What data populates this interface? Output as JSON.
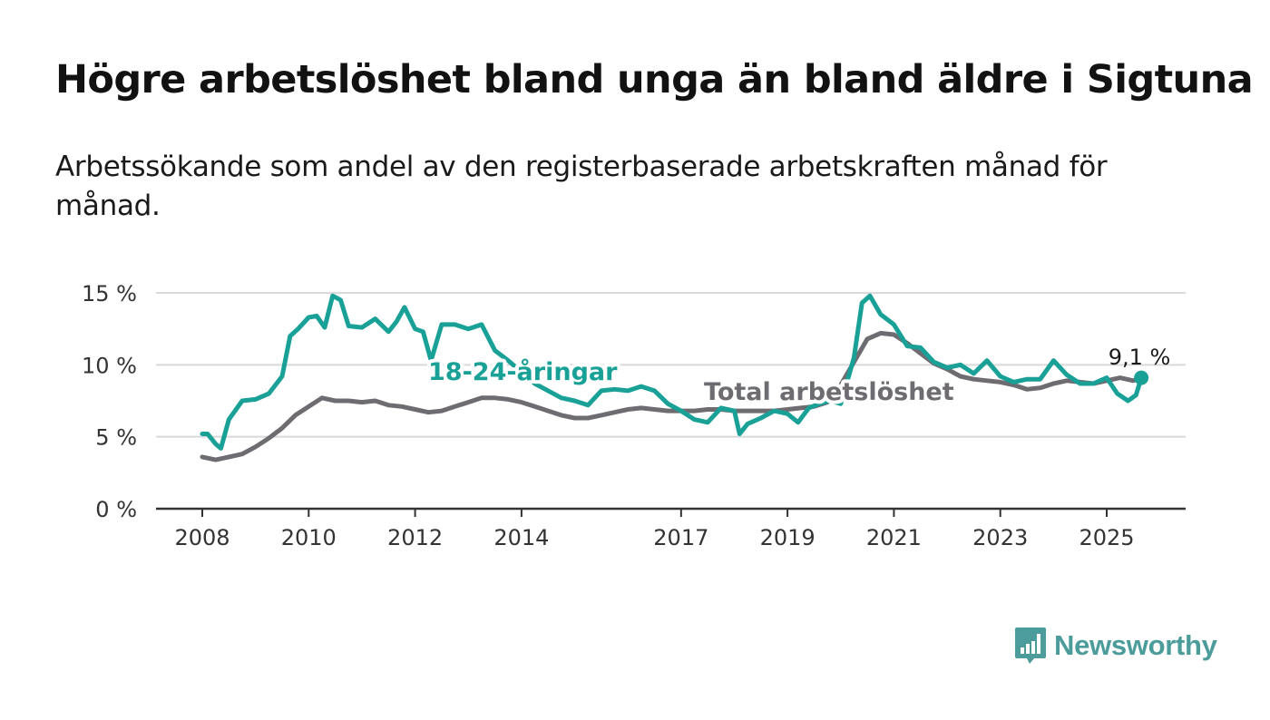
{
  "title": "Högre arbetslöshet bland unga än bland äldre i Sigtuna",
  "subtitle": "Arbetssökande som andel av den registerbaserade arbetskraften månad för månad.",
  "colors": {
    "youth": "#1aa197",
    "total": "#6e6c71",
    "grid": "#d9d9d9",
    "axis": "#333333",
    "brand": "#4b9c9b"
  },
  "logo": {
    "icon": "newsworthy-logo-icon",
    "text": "Newsworthy"
  },
  "chart_data": {
    "type": "line",
    "xlim": [
      2008,
      2026.5
    ],
    "ylim": [
      0,
      15
    ],
    "x_ticks": [
      2008,
      2010,
      2012,
      2014,
      2017,
      2019,
      2021,
      2023,
      2025
    ],
    "x_tick_labels": [
      "2008",
      "2010",
      "2012",
      "2014",
      "2017",
      "2019",
      "2021",
      "2023",
      "2025"
    ],
    "y_ticks": [
      0,
      5,
      10,
      15
    ],
    "y_tick_labels": [
      "0 %",
      "5 %",
      "10 %",
      "15 %"
    ],
    "grid": true,
    "end_label": "9,1 %",
    "series": [
      {
        "name": "Total arbetslöshet",
        "x": [
          2008.0,
          2008.25,
          2008.5,
          2008.75,
          2009.0,
          2009.25,
          2009.5,
          2009.75,
          2010.0,
          2010.25,
          2010.5,
          2010.75,
          2011.0,
          2011.25,
          2011.5,
          2011.75,
          2012.0,
          2012.25,
          2012.5,
          2012.75,
          2013.0,
          2013.25,
          2013.5,
          2013.75,
          2014.0,
          2014.25,
          2014.5,
          2014.75,
          2015.0,
          2015.25,
          2015.5,
          2015.75,
          2016.0,
          2016.25,
          2016.5,
          2016.75,
          2017.0,
          2017.25,
          2017.5,
          2017.75,
          2018.0,
          2018.25,
          2018.5,
          2018.75,
          2019.0,
          2019.25,
          2019.5,
          2019.75,
          2020.0,
          2020.25,
          2020.5,
          2020.75,
          2021.0,
          2021.25,
          2021.5,
          2021.75,
          2022.0,
          2022.25,
          2022.5,
          2022.75,
          2023.0,
          2023.25,
          2023.5,
          2023.75,
          2024.0,
          2024.25,
          2024.5,
          2024.75,
          2025.0,
          2025.25,
          2025.5,
          2025.65
        ],
        "y": [
          3.6,
          3.4,
          3.6,
          3.8,
          4.3,
          4.9,
          5.6,
          6.5,
          7.1,
          7.7,
          7.5,
          7.5,
          7.4,
          7.5,
          7.2,
          7.1,
          6.9,
          6.7,
          6.8,
          7.1,
          7.4,
          7.7,
          7.7,
          7.6,
          7.4,
          7.1,
          6.8,
          6.5,
          6.3,
          6.3,
          6.5,
          6.7,
          6.9,
          7.0,
          6.9,
          6.8,
          6.8,
          6.8,
          6.9,
          6.9,
          6.8,
          6.8,
          6.8,
          6.8,
          6.9,
          7.0,
          7.1,
          7.4,
          8.6,
          10.2,
          11.8,
          12.2,
          12.1,
          11.5,
          10.8,
          10.1,
          9.7,
          9.2,
          9.0,
          8.9,
          8.8,
          8.6,
          8.3,
          8.4,
          8.7,
          8.9,
          8.8,
          8.7,
          8.9,
          9.1,
          8.9,
          9.1
        ]
      },
      {
        "name": "18-24-åringar",
        "x": [
          2008.0,
          2008.1,
          2008.25,
          2008.35,
          2008.5,
          2008.75,
          2009.0,
          2009.25,
          2009.5,
          2009.65,
          2009.8,
          2010.0,
          2010.15,
          2010.3,
          2010.45,
          2010.6,
          2010.75,
          2011.0,
          2011.25,
          2011.5,
          2011.65,
          2011.8,
          2012.0,
          2012.15,
          2012.3,
          2012.5,
          2012.75,
          2013.0,
          2013.25,
          2013.5,
          2013.75,
          2014.0,
          2014.25,
          2014.5,
          2014.75,
          2015.0,
          2015.25,
          2015.5,
          2015.75,
          2016.0,
          2016.25,
          2016.5,
          2016.75,
          2017.0,
          2017.25,
          2017.5,
          2017.75,
          2018.0,
          2018.1,
          2018.25,
          2018.5,
          2018.75,
          2019.0,
          2019.2,
          2019.4,
          2019.6,
          2019.8,
          2020.0,
          2020.25,
          2020.4,
          2020.55,
          2020.75,
          2021.0,
          2021.25,
          2021.5,
          2021.75,
          2022.0,
          2022.25,
          2022.5,
          2022.75,
          2023.0,
          2023.25,
          2023.5,
          2023.75,
          2024.0,
          2024.25,
          2024.5,
          2024.75,
          2025.0,
          2025.2,
          2025.4,
          2025.55,
          2025.65
        ],
        "y": [
          5.2,
          5.2,
          4.5,
          4.2,
          6.2,
          7.5,
          7.6,
          8.0,
          9.2,
          12.0,
          12.5,
          13.3,
          13.4,
          12.6,
          14.8,
          14.5,
          12.7,
          12.6,
          13.2,
          12.3,
          13.0,
          14.0,
          12.5,
          12.3,
          10.3,
          12.8,
          12.8,
          12.5,
          12.8,
          11.0,
          10.3,
          9.5,
          8.7,
          8.2,
          7.7,
          7.5,
          7.2,
          8.2,
          8.3,
          8.2,
          8.5,
          8.2,
          7.3,
          6.8,
          6.2,
          6.0,
          7.0,
          6.8,
          5.2,
          5.9,
          6.3,
          6.8,
          6.6,
          6.0,
          7.0,
          7.3,
          7.5,
          7.3,
          10.5,
          14.3,
          14.8,
          13.5,
          12.8,
          11.3,
          11.2,
          10.2,
          9.8,
          10.0,
          9.4,
          10.3,
          9.2,
          8.8,
          9.0,
          9.0,
          10.3,
          9.3,
          8.7,
          8.7,
          9.1,
          8.0,
          7.5,
          7.9,
          9.1
        ]
      }
    ]
  }
}
